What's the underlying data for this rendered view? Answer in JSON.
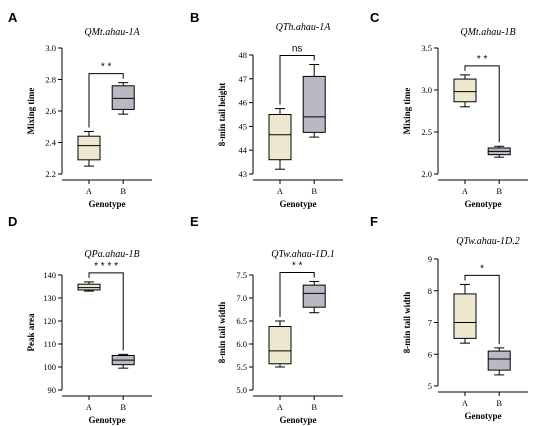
{
  "chart_data": [
    {
      "panel": "A",
      "type": "boxplot",
      "title": "QMt.ahau-1A",
      "xlabel": "Genotype",
      "ylabel": "Mixing time",
      "categories": [
        "A",
        "B"
      ],
      "ylim": [
        2.2,
        3.0
      ],
      "yticks": [
        "2.2",
        "2.4",
        "2.6",
        "2.8",
        "3.0"
      ],
      "boxes": [
        {
          "category": "A",
          "min": 2.25,
          "q1": 2.29,
          "median": 2.38,
          "q3": 2.44,
          "max": 2.47,
          "color": "#efe8d0"
        },
        {
          "category": "B",
          "min": 2.58,
          "q1": 2.61,
          "median": 2.68,
          "q3": 2.76,
          "max": 2.78,
          "color": "#b9b9c4"
        }
      ],
      "significance": "* *"
    },
    {
      "panel": "B",
      "type": "boxplot",
      "title": "QTh.ahau-1A",
      "xlabel": "Genotype",
      "ylabel": "8-min tail height",
      "categories": [
        "A",
        "B"
      ],
      "ylim": [
        43,
        48
      ],
      "yticks": [
        "43",
        "44",
        "45",
        "46",
        "47",
        "48"
      ],
      "boxes": [
        {
          "category": "A",
          "min": 43.2,
          "q1": 43.6,
          "median": 44.65,
          "q3": 45.5,
          "max": 45.75,
          "color": "#efe8d0"
        },
        {
          "category": "B",
          "min": 44.55,
          "q1": 44.75,
          "median": 45.4,
          "q3": 47.1,
          "max": 47.6,
          "color": "#b9b9c4"
        }
      ],
      "significance": "ns"
    },
    {
      "panel": "C",
      "type": "boxplot",
      "title": "QMt.ahau-1B",
      "xlabel": "Genotype",
      "ylabel": "Mixing time",
      "categories": [
        "A",
        "B"
      ],
      "ylim": [
        2.0,
        3.5
      ],
      "yticks": [
        "2.0",
        "2.5",
        "3.0",
        "3.5"
      ],
      "boxes": [
        {
          "category": "A",
          "min": 2.8,
          "q1": 2.86,
          "median": 2.98,
          "q3": 3.13,
          "max": 3.18,
          "color": "#efe8d0"
        },
        {
          "category": "B",
          "min": 2.2,
          "q1": 2.23,
          "median": 2.27,
          "q3": 2.31,
          "max": 2.33,
          "color": "#b9b9c4"
        }
      ],
      "significance": "* *"
    },
    {
      "panel": "D",
      "type": "boxplot",
      "title": "QPa.ahau-1B",
      "xlabel": "Genotype",
      "ylabel": "Peak area",
      "categories": [
        "A",
        "B"
      ],
      "ylim": [
        90,
        140
      ],
      "yticks": [
        "90",
        "100",
        "110",
        "120",
        "130",
        "140"
      ],
      "boxes": [
        {
          "category": "A",
          "min": 133,
          "q1": 133.5,
          "median": 134.5,
          "q3": 136,
          "max": 137,
          "color": "#efe8d0"
        },
        {
          "category": "B",
          "min": 99.5,
          "q1": 101,
          "median": 103,
          "q3": 105,
          "max": 105.5,
          "color": "#b9b9c4"
        }
      ],
      "significance": "* * * *"
    },
    {
      "panel": "E",
      "type": "boxplot",
      "title": "QTw.ahau-1D.1",
      "xlabel": "Genotype",
      "ylabel": "8-min tail width",
      "categories": [
        "A",
        "B"
      ],
      "ylim": [
        5.0,
        7.5
      ],
      "yticks": [
        "5.0",
        "5.5",
        "6.0",
        "6.5",
        "7.0",
        "7.5"
      ],
      "boxes": [
        {
          "category": "A",
          "min": 5.5,
          "q1": 5.57,
          "median": 5.85,
          "q3": 6.38,
          "max": 6.5,
          "color": "#efe8d0"
        },
        {
          "category": "B",
          "min": 6.68,
          "q1": 6.8,
          "median": 7.1,
          "q3": 7.28,
          "max": 7.36,
          "color": "#b9b9c4"
        }
      ],
      "significance": "* *"
    },
    {
      "panel": "F",
      "type": "boxplot",
      "title": "QTw.ahau-1D.2",
      "xlabel": "Genotype",
      "ylabel": "8-min tail width",
      "categories": [
        "A",
        "B"
      ],
      "ylim": [
        5,
        9
      ],
      "yticks": [
        "5",
        "6",
        "7",
        "8",
        "9"
      ],
      "boxes": [
        {
          "category": "A",
          "min": 6.35,
          "q1": 6.5,
          "median": 7.0,
          "q3": 7.9,
          "max": 8.2,
          "color": "#efe8d0"
        },
        {
          "category": "B",
          "min": 5.35,
          "q1": 5.5,
          "median": 5.85,
          "q3": 6.1,
          "max": 6.2,
          "color": "#b9b9c4"
        }
      ],
      "significance": "*"
    }
  ]
}
